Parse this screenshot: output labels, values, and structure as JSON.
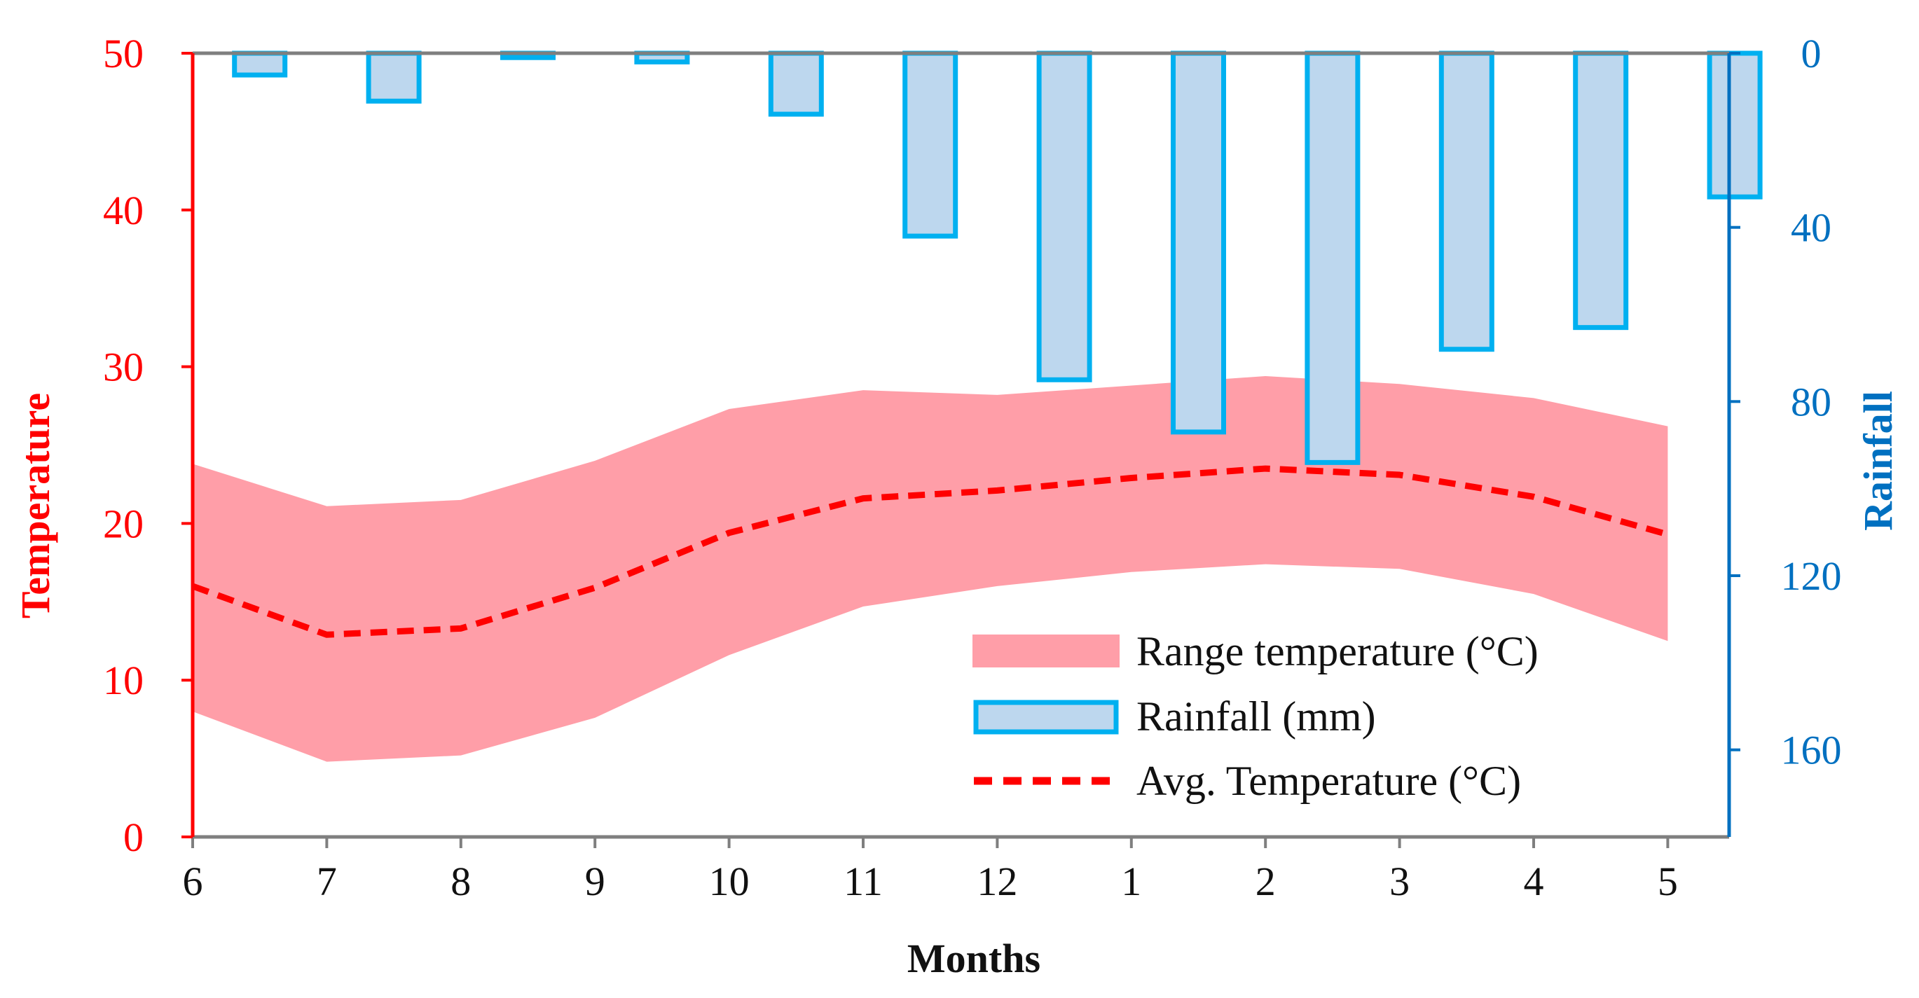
{
  "chart_data": {
    "type": "bar+line+area",
    "xlabel": "Months",
    "ylabel_left": "Temperature",
    "ylabel_right": "Rainfall",
    "categories": [
      "6",
      "7",
      "8",
      "9",
      "10",
      "11",
      "12",
      "1",
      "2",
      "3",
      "4",
      "5"
    ],
    "y_left_lim": [
      0,
      50
    ],
    "y_left_ticks": [
      "0",
      "10",
      "20",
      "30",
      "40",
      "50"
    ],
    "y_right_lim": [
      0,
      180
    ],
    "y_right_inverted": true,
    "y_right_ticks": [
      "0",
      "40",
      "80",
      "120",
      "160"
    ],
    "series": [
      {
        "name": "Range temperature (°C)",
        "kind": "range-area",
        "min": [
          8.0,
          4.8,
          5.2,
          7.6,
          11.6,
          14.7,
          16.0,
          16.9,
          17.4,
          17.1,
          15.5,
          12.5
        ],
        "max": [
          23.8,
          21.1,
          21.5,
          24.0,
          27.3,
          28.5,
          28.2,
          28.8,
          29.4,
          28.9,
          28.0,
          26.2
        ]
      },
      {
        "name": "Rainfall (mm)",
        "kind": "bar",
        "values": [
          5,
          11,
          1,
          2,
          14,
          42,
          75,
          87,
          94,
          68,
          63,
          33
        ]
      },
      {
        "name": "Avg. Temperature (°C)",
        "kind": "dashed-line",
        "values": [
          16.0,
          12.9,
          13.3,
          15.9,
          19.4,
          21.6,
          22.1,
          22.9,
          23.5,
          23.1,
          21.7,
          19.3
        ]
      }
    ],
    "legend": [
      "Range temperature (°C)",
      "Rainfall (mm)",
      "Avg. Temperature (°C)"
    ],
    "legend_position": "bottom-right",
    "colors": {
      "range_fill": "#ff9ea8",
      "bar_fill": "#bdd7ee",
      "bar_stroke": "#00b0f0",
      "avg_line": "#ff0000",
      "left_axis": "#ff0000",
      "right_axis": "#0070c0",
      "frame": "#7f7f7f"
    }
  }
}
